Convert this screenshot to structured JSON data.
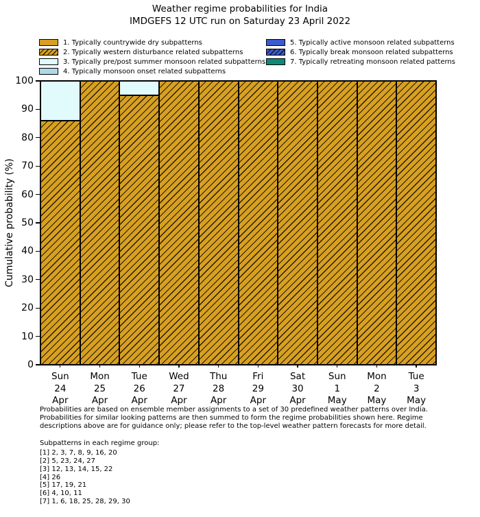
{
  "title": {
    "line1": "Weather regime probabilities for India",
    "line2": "IMDGEFS 12 UTC run on Saturday 23 April 2022"
  },
  "legend": {
    "columns": [
      {
        "items": [
          {
            "label": "1. Typically countrywide dry subpatterns",
            "fill": "#d7a021",
            "hatch": false
          },
          {
            "label": "2. Typically western disturbance related subpatterns",
            "fill": "#d7a021",
            "hatch": true
          },
          {
            "label": "3. Typically pre/post summer monsoon related subpatterns",
            "fill": "#e1fafc",
            "hatch": false
          },
          {
            "label": "4. Typically monsoon onset related subpatterns",
            "fill": "#aed8e6",
            "hatch": false
          }
        ]
      },
      {
        "items": [
          {
            "label": "5. Typically active monsoon related subpatterns",
            "fill": "#3b5bce",
            "hatch": false
          },
          {
            "label": "6. Typically break monsoon related subpatterns",
            "fill": "#3b5bce",
            "hatch": true
          },
          {
            "label": "7. Typically retreating monsoon related patterns",
            "fill": "#0f8878",
            "hatch": false
          }
        ]
      }
    ]
  },
  "chart_data": {
    "type": "bar",
    "stacked": true,
    "grid": false,
    "legend_position": "upper-left, two columns above plot",
    "ylabel": "Cumulative probability (%)",
    "ylim": [
      0,
      100
    ],
    "yticks": [
      0,
      10,
      20,
      30,
      40,
      50,
      60,
      70,
      80,
      90,
      100
    ],
    "categories": [
      {
        "day": "Sun",
        "date": "24",
        "month": "Apr"
      },
      {
        "day": "Mon",
        "date": "25",
        "month": "Apr"
      },
      {
        "day": "Tue",
        "date": "26",
        "month": "Apr"
      },
      {
        "day": "Wed",
        "date": "27",
        "month": "Apr"
      },
      {
        "day": "Thu",
        "date": "28",
        "month": "Apr"
      },
      {
        "day": "Fri",
        "date": "29",
        "month": "Apr"
      },
      {
        "day": "Sat",
        "date": "30",
        "month": "Apr"
      },
      {
        "day": "Sun",
        "date": "1",
        "month": "May"
      },
      {
        "day": "Mon",
        "date": "2",
        "month": "May"
      },
      {
        "day": "Tue",
        "date": "3",
        "month": "May"
      }
    ],
    "series": [
      {
        "name": "2. Typically western disturbance related subpatterns",
        "regime": 2,
        "color": "#d7a021",
        "hatch": true,
        "values": [
          86,
          100,
          95,
          100,
          100,
          100,
          100,
          100,
          100,
          100
        ]
      },
      {
        "name": "3. Typically pre/post summer monsoon related subpatterns",
        "regime": 3,
        "color": "#e1fafc",
        "hatch": false,
        "values": [
          14,
          0,
          5,
          0,
          0,
          0,
          0,
          0,
          0,
          0
        ]
      }
    ]
  },
  "footer": {
    "lines": [
      "Probabilities are based on ensemble member assignments to a set of 30 predefined weather patterns over India.",
      "Probabilities for similar looking patterns are then summed to form the regime probabilities shown here. Regime",
      "descriptions above are for guidance only; please refer to the top-level weather pattern forecasts for more detail."
    ],
    "subpatterns_title": "Subpatterns in each regime group:",
    "subpatterns": [
      "[1] 2, 3, 7, 8, 9, 16, 20",
      "[2] 5, 23, 24, 27",
      "[3] 12, 13, 14, 15, 22",
      "[4] 26",
      "[5] 17, 19, 21",
      "[6] 4, 10, 11",
      "[7] 1, 6, 18, 25, 28, 29, 30"
    ]
  }
}
